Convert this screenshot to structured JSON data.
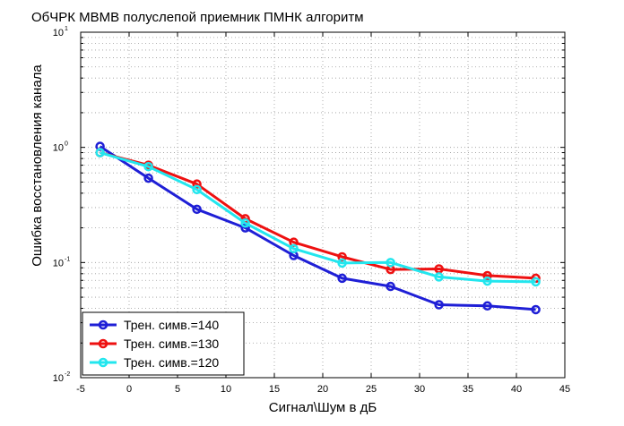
{
  "chart_data": {
    "type": "line",
    "title": "ОбЧРК МВМВ полуслепой приемник ПМНК алгоритм",
    "xlabel": "Сигнал\\Шум в дБ",
    "ylabel": "Ошибка восстановления канала",
    "xlim": [
      -5,
      45
    ],
    "ylim": [
      0.01,
      10
    ],
    "yscale": "log",
    "grid": true,
    "legend_position": "bottom-left",
    "x_ticks": [
      "-5",
      "0",
      "5",
      "10",
      "15",
      "20",
      "25",
      "30",
      "35",
      "40",
      "45"
    ],
    "y_ticks": [
      {
        "base": "10",
        "exp": "-2"
      },
      {
        "base": "10",
        "exp": "-1"
      },
      {
        "base": "10",
        "exp": "0"
      },
      {
        "base": "10",
        "exp": "1"
      }
    ],
    "series": [
      {
        "name": "Трен. симв.=140",
        "color": "#1f1fd6",
        "x": [
          -3,
          2,
          7,
          12,
          17,
          22,
          27,
          32,
          37,
          42
        ],
        "y": [
          1.02,
          0.54,
          0.29,
          0.2,
          0.115,
          0.073,
          0.062,
          0.043,
          0.042,
          0.039
        ]
      },
      {
        "name": "Трен. симв.=130",
        "color": "#ee1111",
        "x": [
          -3,
          2,
          7,
          12,
          17,
          22,
          27,
          32,
          37,
          42
        ],
        "y": [
          0.9,
          0.7,
          0.48,
          0.24,
          0.15,
          0.112,
          0.087,
          0.088,
          0.077,
          0.073
        ]
      },
      {
        "name": "Трен. симв.=120",
        "color": "#22e6ee",
        "x": [
          -3,
          2,
          7,
          12,
          17,
          22,
          27,
          32,
          37,
          42
        ],
        "y": [
          0.9,
          0.68,
          0.43,
          0.22,
          0.132,
          0.099,
          0.1,
          0.075,
          0.069,
          0.068
        ]
      }
    ]
  }
}
